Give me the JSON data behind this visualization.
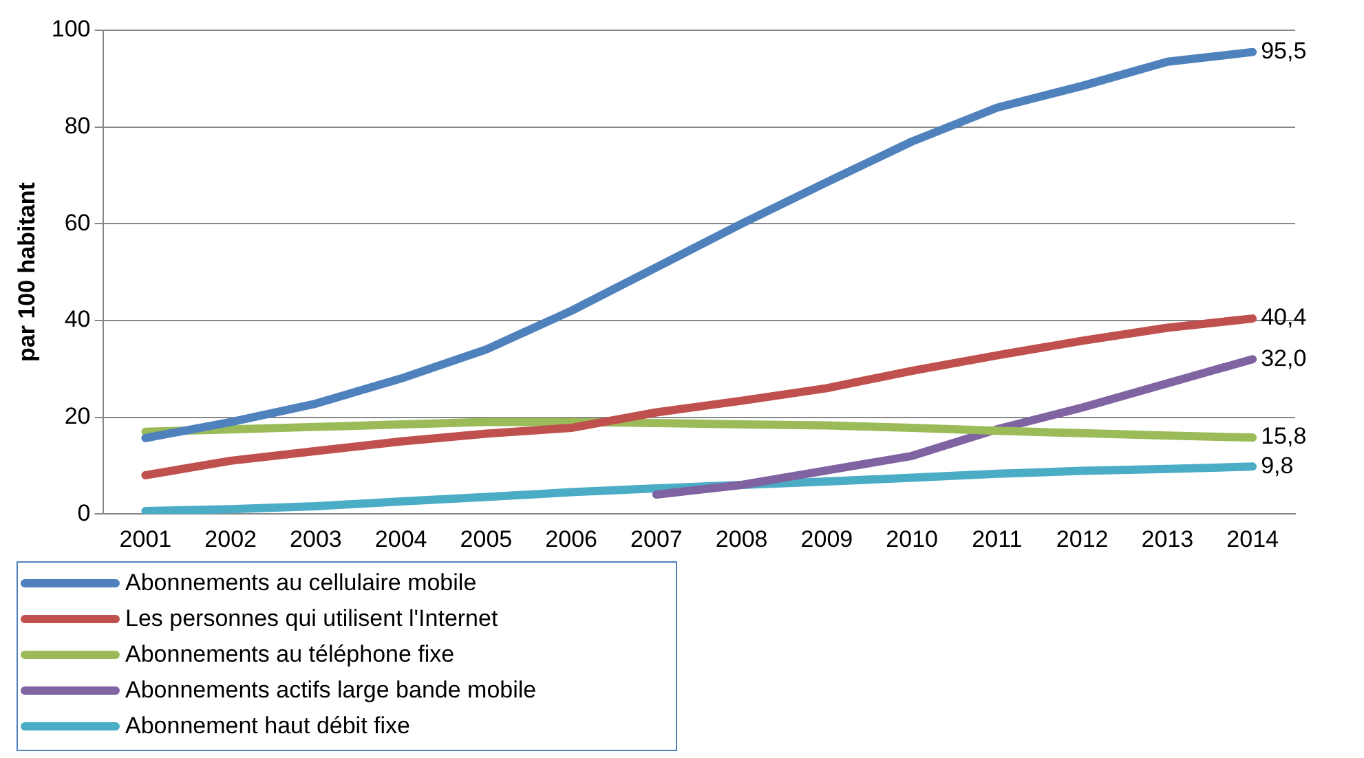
{
  "chart_data": {
    "type": "line",
    "ylabel": "par 100 habitant",
    "categories": [
      "2001",
      "2002",
      "2003",
      "2004",
      "2005",
      "2006",
      "2007",
      "2008",
      "2009",
      "2010",
      "2011",
      "2012",
      "2013",
      "2014"
    ],
    "ylim": [
      0,
      100
    ],
    "yticks": [
      0,
      20,
      40,
      60,
      80,
      100
    ],
    "grid": "y",
    "legend": "bottom left",
    "marker": "none",
    "line_style": "solid",
    "series": [
      {
        "name": "Abonnements au cellulaire mobile",
        "color": "#4f81bd",
        "values": [
          15.7,
          19,
          22.8,
          28,
          34,
          42,
          51,
          60,
          68.6,
          77,
          84,
          88.5,
          93.5,
          95.5
        ],
        "value_labels": [
          null,
          null,
          null,
          null,
          null,
          null,
          null,
          null,
          null,
          null,
          null,
          null,
          null,
          "95,5"
        ]
      },
      {
        "name": "Les personnes qui utilisent l'Internet",
        "color": "#c0504d",
        "values": [
          8,
          11,
          13,
          15,
          16.6,
          17.8,
          21,
          23.4,
          26,
          29.6,
          32.8,
          35.8,
          38.5,
          40.4
        ],
        "value_labels": [
          null,
          null,
          null,
          null,
          null,
          null,
          null,
          null,
          null,
          null,
          null,
          null,
          null,
          "40,4"
        ]
      },
      {
        "name": "Abonnements au téléphone fixe",
        "color": "#9bbb59",
        "values": [
          17,
          17.5,
          18,
          18.5,
          19,
          19,
          18.8,
          18.5,
          18.3,
          17.8,
          17.2,
          16.7,
          16.2,
          15.8
        ],
        "value_labels": [
          null,
          null,
          null,
          null,
          null,
          null,
          null,
          null,
          null,
          null,
          null,
          null,
          null,
          "15,8"
        ]
      },
      {
        "name": "Abonnements actifs large bande mobile",
        "color": "#8064a2",
        "values": [
          null,
          null,
          null,
          null,
          null,
          null,
          4,
          6,
          9,
          12,
          17.5,
          22,
          27,
          32.0
        ],
        "value_labels": [
          null,
          null,
          null,
          null,
          null,
          null,
          null,
          null,
          null,
          null,
          null,
          null,
          null,
          "32,0"
        ]
      },
      {
        "name": "Abonnement haut débit fixe",
        "color": "#4bacc6",
        "values": [
          0.6,
          1,
          1.6,
          2.6,
          3.5,
          4.5,
          5.3,
          6,
          6.7,
          7.5,
          8.3,
          8.9,
          9.3,
          9.8
        ],
        "value_labels": [
          null,
          null,
          null,
          null,
          null,
          null,
          null,
          null,
          null,
          null,
          null,
          null,
          null,
          "9,8"
        ]
      }
    ]
  }
}
